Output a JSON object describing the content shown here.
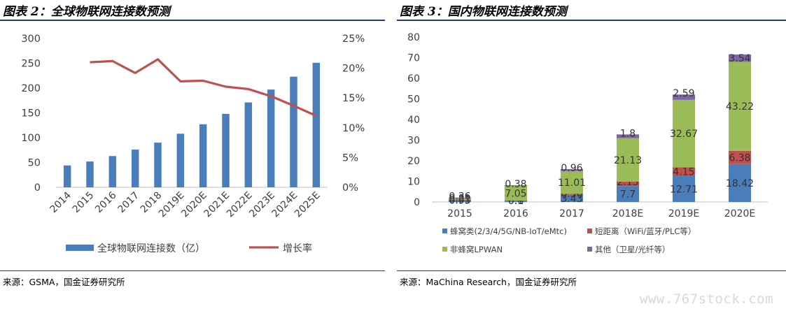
{
  "left": {
    "title": "图表 2：全球物联网连接数预测",
    "source": "来源：GSMA，国金证券研究所",
    "chart_data": {
      "type": "bar+line",
      "categories": [
        "2014",
        "2015",
        "2016",
        "2017",
        "2018",
        "2019E",
        "2020E",
        "2021E",
        "2022E",
        "2023E",
        "2024E",
        "2025E"
      ],
      "series": [
        {
          "name": "全球物联网连接数（亿）",
          "type": "bar",
          "axis": "left",
          "color": "#4a7ebb",
          "values": [
            44,
            52,
            63,
            76,
            90,
            108,
            127,
            148,
            171,
            197,
            223,
            251
          ]
        },
        {
          "name": "增长率",
          "type": "line",
          "axis": "right",
          "color": "#c0504d",
          "values": [
            null,
            0.21,
            0.212,
            0.192,
            0.215,
            0.178,
            0.179,
            0.169,
            0.165,
            0.153,
            0.137,
            0.12
          ]
        }
      ],
      "yleft": {
        "min": 0,
        "max": 300,
        "ticks": [
          "0",
          "50",
          "100",
          "150",
          "200",
          "250",
          "300"
        ]
      },
      "yright": {
        "min": 0,
        "max": 0.25,
        "ticks": [
          "0%",
          "5%",
          "10%",
          "15%",
          "20%",
          "25%"
        ]
      },
      "grid": false,
      "legend": "bottom"
    }
  },
  "right": {
    "title": "图表 3：国内物联网连接数预测",
    "source": "来源：MaChina Research，国金证券研究所",
    "chart_data": {
      "type": "stacked-bar",
      "categories": [
        "2015",
        "2016",
        "2017",
        "2018E",
        "2019E",
        "2020E"
      ],
      "series": [
        {
          "name": "蜂窝类(2/3/4/5G/NB-IoT/eMtc)",
          "color": "#4a7ebb",
          "values": [
            0.93,
            0.6,
            3.43,
            7.7,
            12.71,
            18.42
          ],
          "labels": [
            "0.93",
            "0.6",
            "3.43",
            "7.7",
            "12.71",
            "18.42"
          ]
        },
        {
          "name": "短距离（WiFi/蓝牙/PLC等）",
          "color": "#c0504d",
          "values": [
            0.05,
            0.1,
            0.56,
            2.13,
            4.15,
            6.38
          ],
          "labels": [
            "0.05",
            "0.1",
            "0.56",
            "2.13",
            "4.15",
            "6.38"
          ]
        },
        {
          "name": "非蜂窝LPWAN",
          "color": "#9bbb59",
          "values": [
            0.81,
            7.05,
            11.01,
            21.13,
            32.67,
            43.22
          ],
          "labels": [
            "0.81",
            "7.05",
            "11.01",
            "21.13",
            "32.67",
            "43.22"
          ]
        },
        {
          "name": "其他（卫星/光纤等）",
          "color": "#8064a2",
          "values": [
            0.36,
            0.38,
            0.96,
            1.8,
            2.59,
            3.54
          ],
          "labels": [
            "0.36",
            "0.38",
            "0.96",
            "1.8",
            "2.59",
            "3.54"
          ]
        }
      ],
      "y": {
        "min": 0,
        "max": 80,
        "ticks": [
          "0",
          "10",
          "20",
          "30",
          "40",
          "50",
          "60",
          "70",
          "80"
        ]
      },
      "grid": false,
      "legend": "bottom"
    }
  },
  "watermark": "www.767stock.com"
}
